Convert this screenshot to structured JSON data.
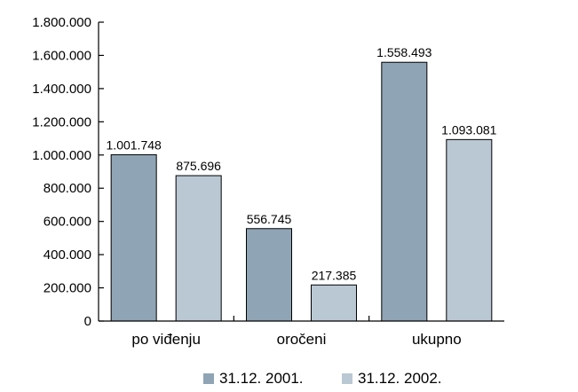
{
  "chart_data": {
    "type": "bar",
    "categories": [
      "po viđenju",
      "oročeni",
      "ukupno"
    ],
    "series": [
      {
        "name": "31.12. 2001.",
        "values": [
          1001748,
          556745,
          1558493
        ],
        "labels": [
          "1.001.748",
          "556.745",
          "1.558.493"
        ],
        "color": "#8fa4b4"
      },
      {
        "name": "31.12. 2002.",
        "values": [
          875696,
          217385,
          1093081
        ],
        "labels": [
          "875.696",
          "217.385",
          "1.093.081"
        ],
        "color": "#bac8d4"
      }
    ],
    "y_ticks": [
      0,
      200000,
      400000,
      600000,
      800000,
      1000000,
      1200000,
      1400000,
      1600000,
      1800000
    ],
    "y_tick_labels": [
      "0",
      "200.000",
      "400.000",
      "600.000",
      "800.000",
      "1.000.000",
      "1.200.000",
      "1.400.000",
      "1.600.000",
      "1.800.000"
    ],
    "ylim": [
      0,
      1800000
    ],
    "grid": false,
    "legend_position": "bottom"
  }
}
